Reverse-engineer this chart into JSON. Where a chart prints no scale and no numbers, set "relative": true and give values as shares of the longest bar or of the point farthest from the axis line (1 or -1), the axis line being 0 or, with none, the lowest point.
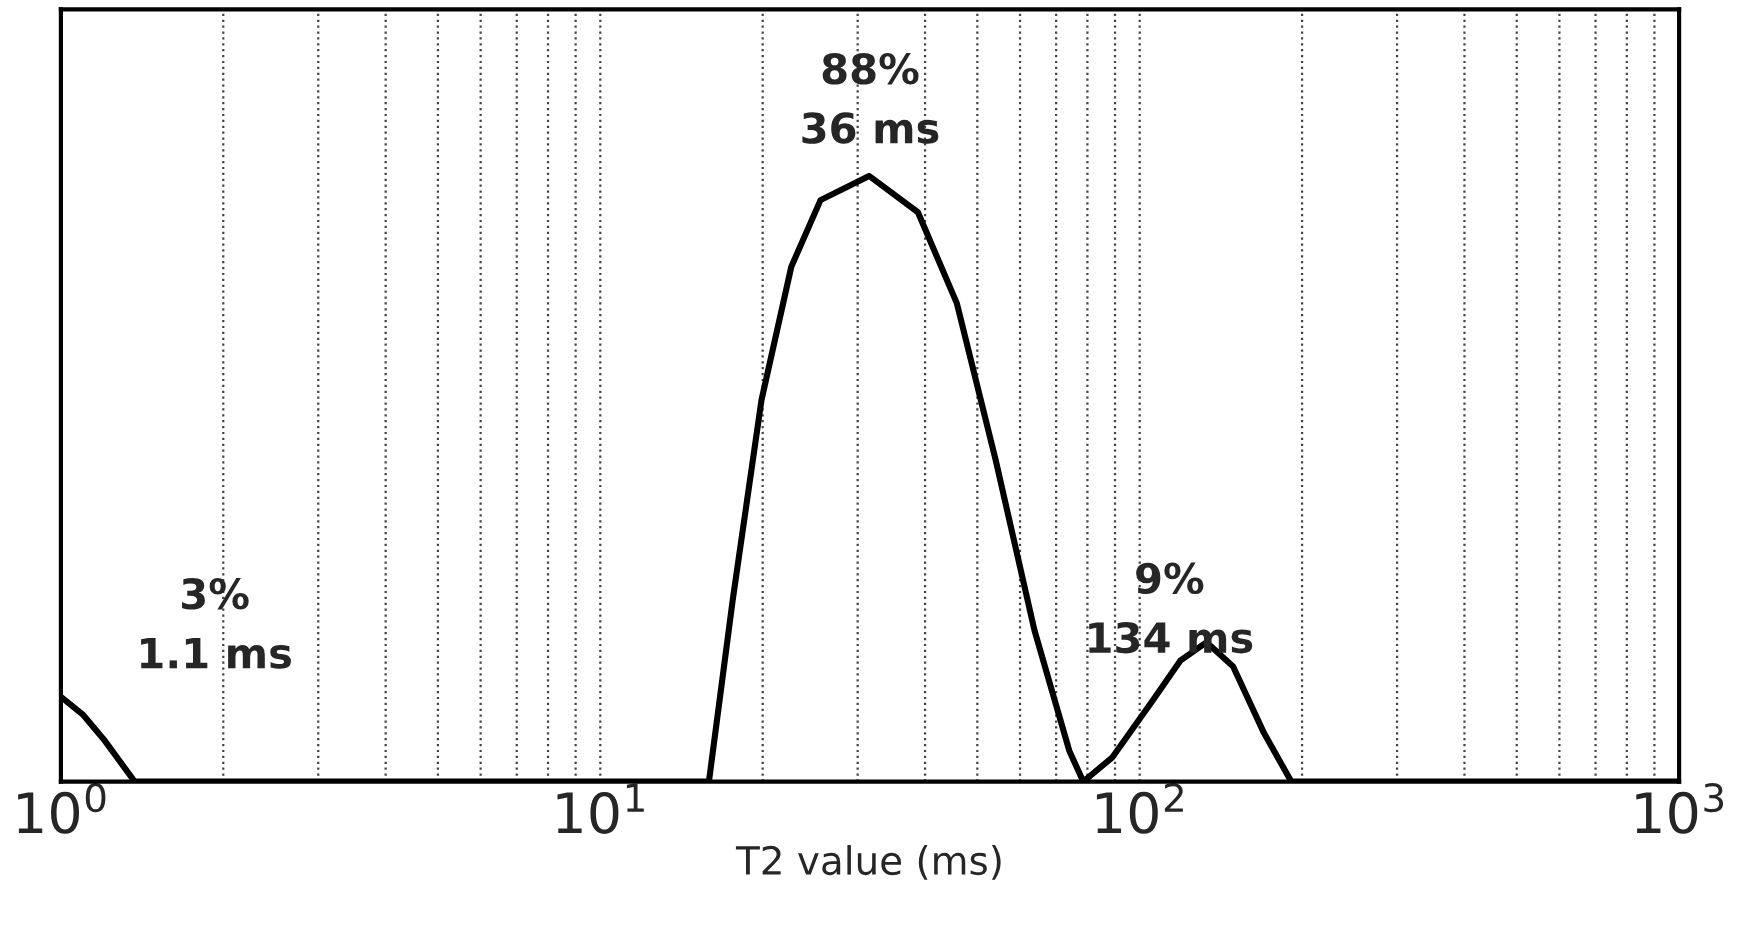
{
  "chart_data": {
    "type": "line",
    "xlabel": "T2 value (ms)",
    "log": "x",
    "relative": true,
    "grid": "x",
    "tick_labels": "x",
    "line_style": "solid",
    "marker": "none",
    "xlim": [
      1,
      1000
    ],
    "xticks": [
      {
        "value": 1,
        "label": "10$^{0}$"
      },
      {
        "value": 10,
        "label": "10$^{1}$"
      },
      {
        "value": 100,
        "label": "10$^{2}$"
      },
      {
        "value": 1000,
        "label": "10$^{3}$"
      }
    ],
    "series": [
      {
        "color": "#000000",
        "x": [
          1,
          1.1,
          1.2,
          1.37,
          15.9,
          17.6,
          19.9,
          22.6,
          25.6,
          31.5,
          38.8,
          45.8,
          54.1,
          63.8,
          74.1,
          78.6,
          89,
          105,
          119,
          133,
          149,
          170,
          191,
          1000
        ],
        "values": [
          0.14,
          0.11,
          0.07,
          0,
          0,
          0.3,
          0.63,
          0.85,
          0.96,
          1.0,
          0.94,
          0.79,
          0.53,
          0.25,
          0.05,
          0,
          0.04,
          0.13,
          0.2,
          0.23,
          0.19,
          0.08,
          0,
          0
        ]
      }
    ],
    "annotations": [
      "3%\n1.1 ms",
      "88%\n36 ms",
      "9%\n134 ms"
    ]
  }
}
